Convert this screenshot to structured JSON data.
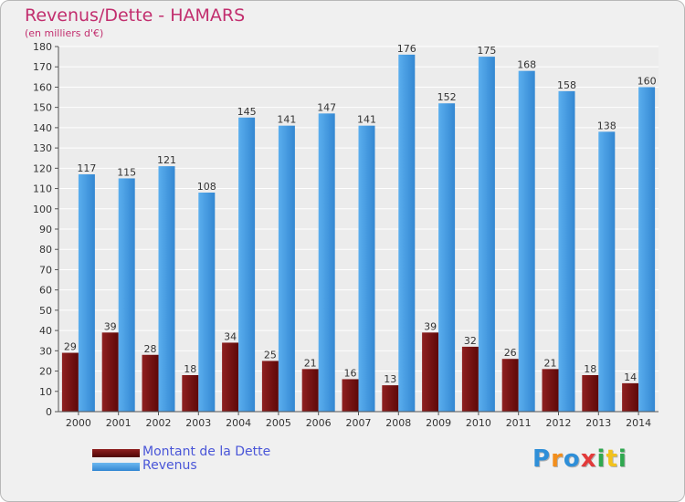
{
  "colors": {
    "debt": "#6e0d0d",
    "debt_light": "#b33a3a",
    "revenue": "#3f95de",
    "revenue_light": "#6cb8f0",
    "title": "#c22e6e",
    "legend_text": "#4a56d8"
  },
  "chart_data": {
    "type": "bar",
    "title": "Revenus/Dette - HAMARS",
    "subtitle": "(en milliers d'€)",
    "categories": [
      "2000",
      "2001",
      "2002",
      "2003",
      "2004",
      "2005",
      "2006",
      "2007",
      "2008",
      "2009",
      "2010",
      "2011",
      "2012",
      "2013",
      "2014"
    ],
    "series": [
      {
        "name": "Montant de la Dette",
        "values": [
          29,
          39,
          28,
          18,
          34,
          25,
          21,
          16,
          13,
          39,
          32,
          26,
          21,
          18,
          14
        ]
      },
      {
        "name": "Revenus",
        "values": [
          117,
          115,
          121,
          108,
          145,
          141,
          147,
          141,
          176,
          152,
          175,
          168,
          158,
          138,
          160
        ]
      }
    ],
    "ylim": [
      0,
      180
    ],
    "ytick_step": 10,
    "grid": true,
    "legend_position": "bottom-left"
  },
  "legend": {
    "debt_label": "Montant de la Dette",
    "revenue_label": "Revenus"
  },
  "logo": {
    "letters": [
      "P",
      "r",
      "o",
      "x",
      "i",
      "t",
      "i"
    ],
    "colors": [
      "#2f8fd8",
      "#f28e1c",
      "#2f8fd8",
      "#e23a3a",
      "#2fa84f",
      "#f2c21c",
      "#2fa84f"
    ]
  }
}
